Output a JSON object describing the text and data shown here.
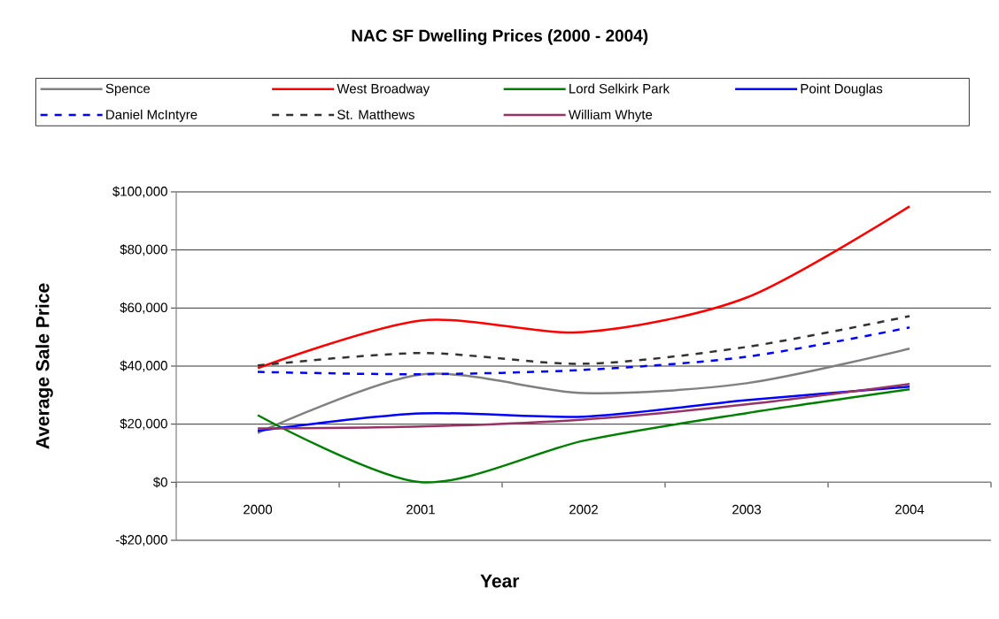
{
  "chart_data": {
    "type": "line",
    "title": "NAC SF Dwelling Prices (2000 - 2004)",
    "xlabel": "Year",
    "ylabel": "Average Sale Price",
    "categories": [
      "2000",
      "2001",
      "2002",
      "2003",
      "2004"
    ],
    "ylim": [
      -20000,
      100000
    ],
    "yticks": [
      {
        "value": -20000,
        "label": "-$20,000"
      },
      {
        "value": 0,
        "label": "$0"
      },
      {
        "value": 20000,
        "label": "$20,000"
      },
      {
        "value": 40000,
        "label": "$40,000"
      },
      {
        "value": 60000,
        "label": "$60,000"
      },
      {
        "value": 80000,
        "label": "$80,000"
      },
      {
        "value": 100000,
        "label": "$100,000"
      }
    ],
    "grid": "y",
    "legend": "top",
    "marker": "none",
    "series": [
      {
        "name": "Spence",
        "color": "#808080",
        "line_style": "solid",
        "values": [
          17000,
          37100,
          30700,
          34100,
          46000
        ]
      },
      {
        "name": "West Broadway",
        "color": "#ff0000",
        "line_style": "solid",
        "values": [
          39300,
          55700,
          51700,
          63600,
          95000
        ]
      },
      {
        "name": "Lord Selkirk Park",
        "color": "#008000",
        "line_style": "solid",
        "values": [
          23100,
          0,
          14300,
          23800,
          32000
        ]
      },
      {
        "name": "Point Douglas",
        "color": "#0000ff",
        "line_style": "solid",
        "values": [
          17700,
          23700,
          22600,
          28300,
          32900
        ]
      },
      {
        "name": "Daniel McIntyre",
        "color": "#0000ff",
        "line_style": "dashed",
        "values": [
          38000,
          37200,
          38700,
          43200,
          53300
        ]
      },
      {
        "name": "St. Matthews",
        "color": "#333333",
        "line_style": "dashed",
        "values": [
          40200,
          44500,
          40800,
          46600,
          57200
        ]
      },
      {
        "name": "William Whyte",
        "color": "#993366",
        "line_style": "solid",
        "values": [
          18500,
          19200,
          21600,
          26800,
          33800
        ]
      }
    ]
  }
}
